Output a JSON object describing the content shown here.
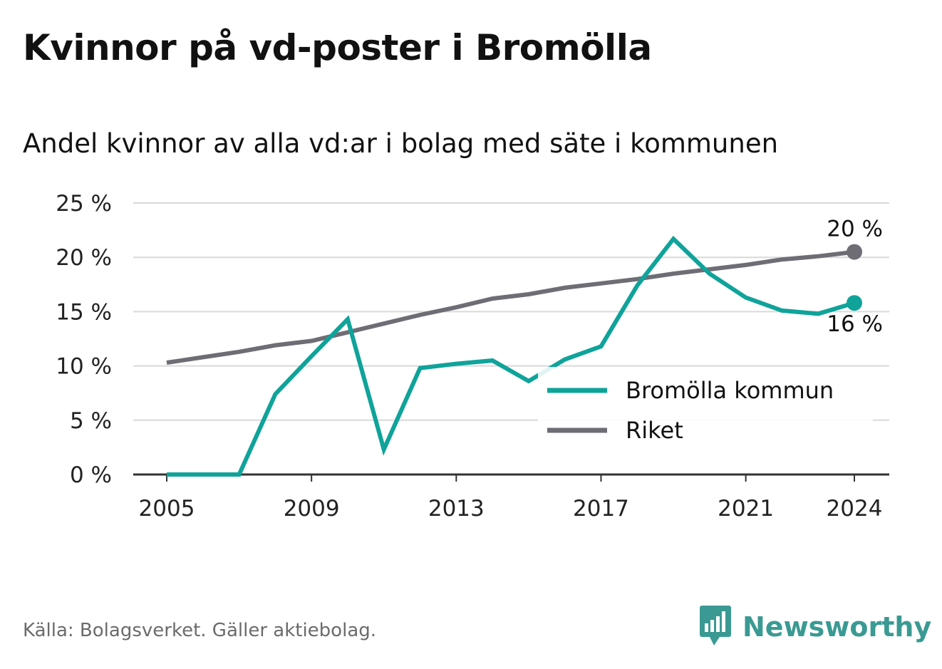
{
  "title": "Kvinnor på vd-poster i Bromölla",
  "subtitle": "Andel kvinnor av alla vd:ar i bolag med säte i kommunen",
  "source": "Källa: Bolagsverket. Gäller aktiebolag.",
  "brand": {
    "name": "Newsworthy",
    "icon": "newsworthy-logo-icon",
    "color": "#3a9a93"
  },
  "colors": {
    "bromolla": "#0fa39a",
    "riket": "#6e6d75",
    "grid": "#d9d9d9",
    "axis": "#333333"
  },
  "chart_data": {
    "type": "line",
    "x": [
      2005,
      2006,
      2007,
      2008,
      2009,
      2010,
      2011,
      2012,
      2013,
      2014,
      2015,
      2016,
      2017,
      2018,
      2019,
      2020,
      2021,
      2022,
      2023,
      2024
    ],
    "x_ticks": [
      "2005",
      "2009",
      "2013",
      "2017",
      "2021",
      "2024"
    ],
    "y_ticks": [
      "0 %",
      "5 %",
      "10 %",
      "15 %",
      "20 %",
      "25 %"
    ],
    "ylim": [
      0,
      25
    ],
    "grid": true,
    "legend_position": "bottom-right",
    "series": [
      {
        "name": "Bromölla kommun",
        "color": "#0fa39a",
        "values": [
          0,
          0,
          0,
          7.4,
          10.9,
          14.3,
          2.3,
          9.8,
          10.2,
          10.5,
          8.6,
          10.6,
          11.8,
          17.4,
          21.7,
          18.5,
          16.3,
          15.1,
          14.8,
          15.8
        ],
        "end_label": "16 %"
      },
      {
        "name": "Riket",
        "color": "#6e6d75",
        "values": [
          10.3,
          10.8,
          11.3,
          11.9,
          12.3,
          13.1,
          13.9,
          14.7,
          15.4,
          16.2,
          16.6,
          17.2,
          17.6,
          18.0,
          18.5,
          18.9,
          19.3,
          19.8,
          20.1,
          20.5
        ],
        "end_label": "20 %"
      }
    ]
  }
}
